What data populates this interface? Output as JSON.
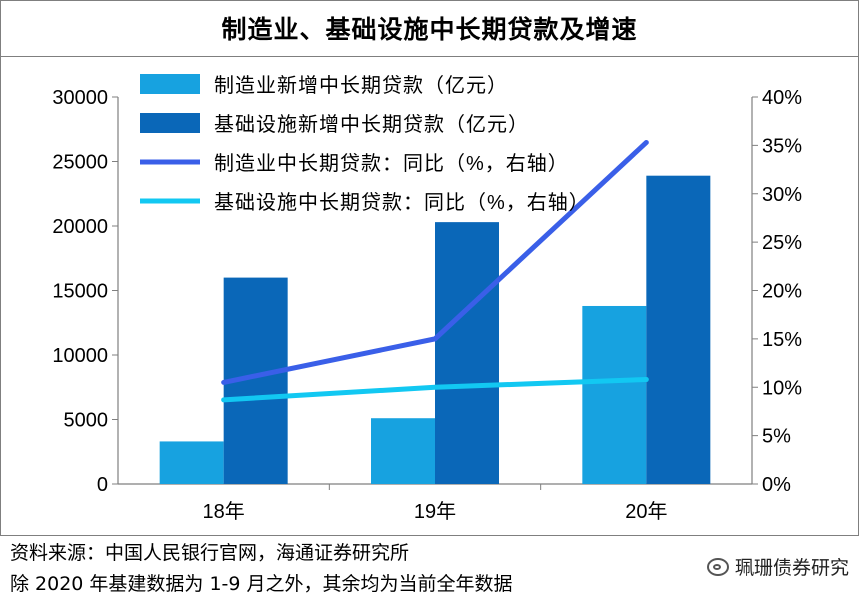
{
  "chart_data": {
    "type": "bar",
    "title": "制造业、基础设施中长期贷款及增速",
    "categories": [
      "18年",
      "19年",
      "20年"
    ],
    "series": [
      {
        "name": "制造业新增中长期贷款（亿元）",
        "kind": "bar",
        "axis": "left",
        "color": "#17a2e0",
        "values": [
          3300,
          5100,
          13800
        ]
      },
      {
        "name": "基础设施新增中长期贷款（亿元）",
        "kind": "bar",
        "axis": "left",
        "color": "#0a67b8",
        "values": [
          16000,
          20300,
          23900
        ]
      },
      {
        "name": "制造业中长期贷款：同比（%，右轴）",
        "kind": "line",
        "axis": "right",
        "color": "#3a5fe8",
        "values": [
          10.5,
          15.0,
          35.3
        ]
      },
      {
        "name": "基础设施中长期贷款：同比（%，右轴）",
        "kind": "line",
        "axis": "right",
        "color": "#12c8f2",
        "values": [
          8.7,
          10.0,
          10.8
        ]
      }
    ],
    "left_axis": {
      "min": 0,
      "max": 30000,
      "ticks": [
        "0",
        "5000",
        "10000",
        "15000",
        "20000",
        "25000",
        "30000"
      ]
    },
    "right_axis": {
      "min": 0,
      "max": 40,
      "ticks": [
        "0%",
        "5%",
        "10%",
        "15%",
        "20%",
        "25%",
        "30%",
        "35%",
        "40%"
      ]
    },
    "legend_position": "top-left"
  },
  "footer": {
    "source": "资料来源：中国人民银行官网，海通证券研究所",
    "note": "除 2020 年基建数据为 1-9 月之外，其余均为当前全年数据"
  },
  "watermark": {
    "text": "珮珊债券研究",
    "icon": "wechat-icon"
  }
}
